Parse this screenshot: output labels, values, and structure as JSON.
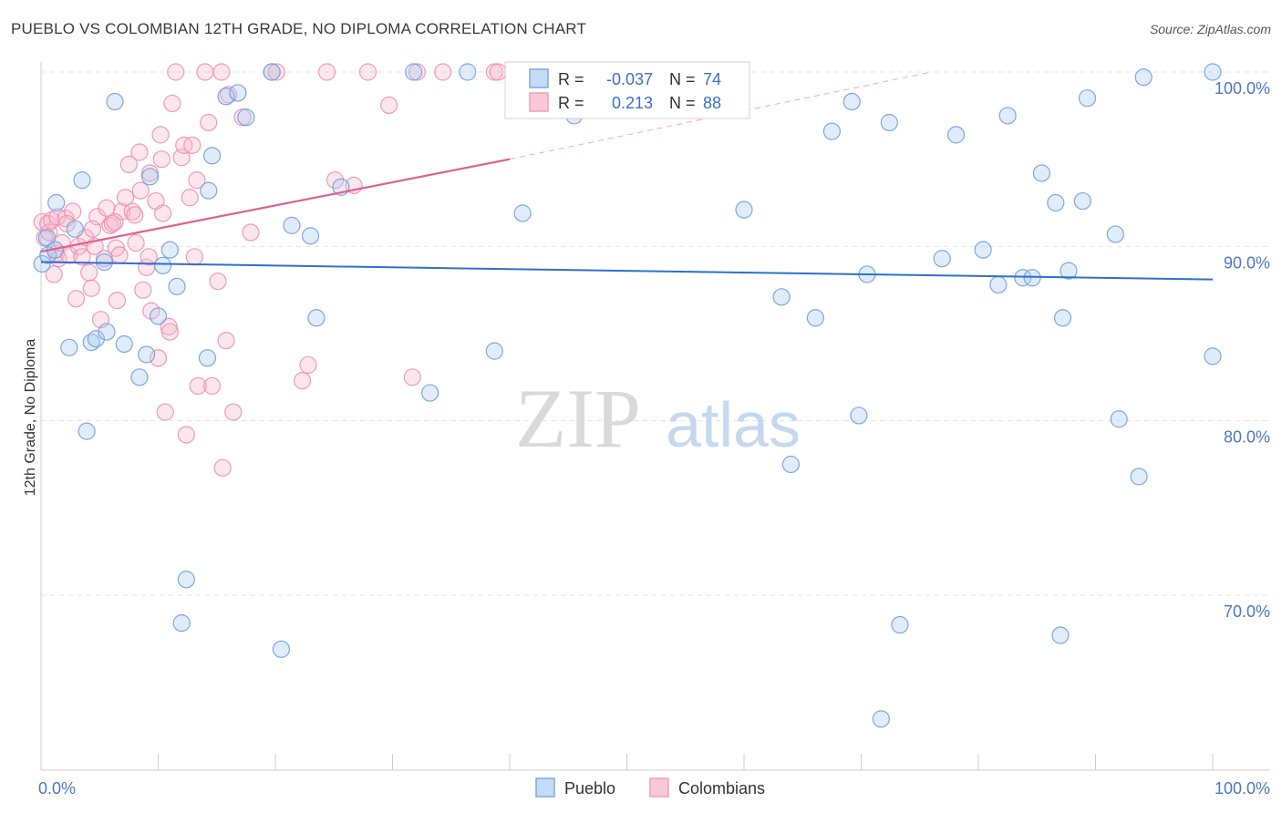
{
  "title": "PUEBLO VS COLOMBIAN 12TH GRADE, NO DIPLOMA CORRELATION CHART",
  "source": "Source: ZipAtlas.com",
  "watermark": {
    "zip": "ZIP",
    "atlas": "atlas"
  },
  "chart_data": {
    "type": "scatter",
    "ylabel": "12th Grade, No Diploma",
    "xlim": [
      0,
      100
    ],
    "ylim": [
      60,
      101.5
    ],
    "x_tick_labels": [
      {
        "value": 0,
        "label": "0.0%"
      },
      {
        "value": 100,
        "label": "100.0%"
      }
    ],
    "y_tick_labels": [
      {
        "value": 70,
        "label": "70.0%"
      },
      {
        "value": 80,
        "label": "80.0%"
      },
      {
        "value": 90,
        "label": "90.0%"
      },
      {
        "value": 100,
        "label": "100.0%"
      }
    ],
    "y_grid": [
      70,
      80,
      90,
      100
    ],
    "x_minor_ticks": [
      10,
      20,
      30,
      40,
      50,
      60,
      70,
      80,
      90,
      100
    ],
    "legend": {
      "position": "bottom-center",
      "entries": [
        "Pueblo",
        "Colombians"
      ]
    },
    "stats": [
      {
        "series": "Pueblo",
        "r_label": "R =",
        "r": "-0.037",
        "n_label": "N =",
        "n": "74"
      },
      {
        "series": "Colombians",
        "r_label": "R =",
        "r": "0.213",
        "n_label": "N =",
        "n": "88"
      }
    ],
    "series": [
      {
        "name": "Pueblo",
        "color": "#7aaae6",
        "line_color": "#2e6fd0",
        "trend": {
          "x0": 0,
          "y0": 89.1,
          "x1": 100,
          "y1": 88.1,
          "dashed_to": null
        },
        "points": [
          [
            0.1,
            89.0
          ],
          [
            0.5,
            90.5
          ],
          [
            0.6,
            89.5
          ],
          [
            1.2,
            89.8
          ],
          [
            1.3,
            92.5
          ],
          [
            2.4,
            84.2
          ],
          [
            2.9,
            91.0
          ],
          [
            3.5,
            93.8
          ],
          [
            3.9,
            79.4
          ],
          [
            4.3,
            84.5
          ],
          [
            4.7,
            84.7
          ],
          [
            5.4,
            89.1
          ],
          [
            5.6,
            85.1
          ],
          [
            6.3,
            98.3
          ],
          [
            7.1,
            84.4
          ],
          [
            8.4,
            82.5
          ],
          [
            9.0,
            83.8
          ],
          [
            9.3,
            94.0
          ],
          [
            10.0,
            86.0
          ],
          [
            10.4,
            88.9
          ],
          [
            11.0,
            89.8
          ],
          [
            11.6,
            87.7
          ],
          [
            12.4,
            70.9
          ],
          [
            12.0,
            68.4
          ],
          [
            14.2,
            83.6
          ],
          [
            14.3,
            93.2
          ],
          [
            14.6,
            95.2
          ],
          [
            15.8,
            98.6
          ],
          [
            16.8,
            98.8
          ],
          [
            17.5,
            97.4
          ],
          [
            19.7,
            100.0
          ],
          [
            20.5,
            66.9
          ],
          [
            21.4,
            91.2
          ],
          [
            23.0,
            90.6
          ],
          [
            23.5,
            85.9
          ],
          [
            25.6,
            93.4
          ],
          [
            31.8,
            100.0
          ],
          [
            33.2,
            81.6
          ],
          [
            36.4,
            100.0
          ],
          [
            38.7,
            84.0
          ],
          [
            41.1,
            91.9
          ],
          [
            45.5,
            97.5
          ],
          [
            47.1,
            100.0
          ],
          [
            60.0,
            92.1
          ],
          [
            63.2,
            87.1
          ],
          [
            64.0,
            77.5
          ],
          [
            66.1,
            85.9
          ],
          [
            67.5,
            96.6
          ],
          [
            69.2,
            98.3
          ],
          [
            69.8,
            80.3
          ],
          [
            70.5,
            88.4
          ],
          [
            71.7,
            62.9
          ],
          [
            72.4,
            97.1
          ],
          [
            73.3,
            68.3
          ],
          [
            76.9,
            89.3
          ],
          [
            78.1,
            96.4
          ],
          [
            80.4,
            89.8
          ],
          [
            81.7,
            87.8
          ],
          [
            82.5,
            97.5
          ],
          [
            83.8,
            88.2
          ],
          [
            84.6,
            88.2
          ],
          [
            85.4,
            94.2
          ],
          [
            86.6,
            92.5
          ],
          [
            87.0,
            67.7
          ],
          [
            87.2,
            85.9
          ],
          [
            87.7,
            88.6
          ],
          [
            88.9,
            92.6
          ],
          [
            89.3,
            98.5
          ],
          [
            91.7,
            90.7
          ],
          [
            92.0,
            80.1
          ],
          [
            93.7,
            76.8
          ],
          [
            94.1,
            99.7
          ],
          [
            100.0,
            83.7
          ],
          [
            100.0,
            100.0
          ]
        ]
      },
      {
        "name": "Colombians",
        "color": "#f2a0bc",
        "line_color": "#e0608e",
        "trend": {
          "x0": 0,
          "y0": 89.7,
          "x1": 40,
          "y1": 95.0,
          "dashed_x1": 76.0,
          "dashed_y1": 100.0
        },
        "points": [
          [
            0.1,
            91.4
          ],
          [
            0.3,
            90.5
          ],
          [
            0.6,
            91.3
          ],
          [
            0.7,
            90.8
          ],
          [
            0.9,
            91.5
          ],
          [
            1.1,
            88.4
          ],
          [
            1.3,
            89.6
          ],
          [
            1.4,
            91.7
          ],
          [
            1.5,
            89.3
          ],
          [
            1.8,
            90.2
          ],
          [
            2.1,
            91.6
          ],
          [
            2.4,
            89.5
          ],
          [
            2.7,
            92.0
          ],
          [
            3.0,
            87.0
          ],
          [
            3.2,
            90.0
          ],
          [
            3.5,
            89.4
          ],
          [
            3.8,
            90.5
          ],
          [
            4.1,
            88.5
          ],
          [
            4.3,
            87.6
          ],
          [
            4.6,
            90.0
          ],
          [
            4.8,
            91.7
          ],
          [
            5.1,
            85.8
          ],
          [
            5.4,
            89.3
          ],
          [
            5.6,
            92.2
          ],
          [
            5.9,
            91.2
          ],
          [
            6.1,
            91.3
          ],
          [
            6.4,
            89.9
          ],
          [
            6.5,
            86.9
          ],
          [
            6.7,
            89.5
          ],
          [
            6.9,
            92.0
          ],
          [
            7.2,
            92.8
          ],
          [
            7.5,
            94.7
          ],
          [
            7.8,
            92.0
          ],
          [
            8.0,
            91.8
          ],
          [
            8.1,
            90.2
          ],
          [
            8.4,
            95.4
          ],
          [
            8.5,
            93.2
          ],
          [
            8.7,
            87.5
          ],
          [
            9.0,
            88.8
          ],
          [
            9.2,
            89.4
          ],
          [
            9.3,
            94.2
          ],
          [
            9.4,
            86.3
          ],
          [
            9.8,
            92.6
          ],
          [
            10.0,
            83.6
          ],
          [
            10.2,
            96.4
          ],
          [
            10.4,
            91.9
          ],
          [
            10.6,
            80.5
          ],
          [
            10.9,
            85.4
          ],
          [
            11.0,
            85.1
          ],
          [
            11.2,
            98.2
          ],
          [
            11.5,
            100.0
          ],
          [
            12.0,
            95.1
          ],
          [
            12.2,
            95.8
          ],
          [
            12.4,
            79.2
          ],
          [
            12.7,
            92.8
          ],
          [
            12.9,
            95.8
          ],
          [
            13.1,
            89.4
          ],
          [
            13.3,
            93.8
          ],
          [
            13.4,
            82.0
          ],
          [
            14.0,
            100.0
          ],
          [
            14.3,
            97.1
          ],
          [
            14.6,
            82.0
          ],
          [
            15.1,
            88.0
          ],
          [
            15.4,
            100.0
          ],
          [
            15.5,
            77.3
          ],
          [
            15.8,
            84.6
          ],
          [
            16.0,
            98.7
          ],
          [
            16.4,
            80.5
          ],
          [
            17.2,
            97.4
          ],
          [
            17.9,
            90.8
          ],
          [
            19.7,
            100.0
          ],
          [
            20.1,
            100.0
          ],
          [
            22.3,
            82.3
          ],
          [
            22.8,
            83.2
          ],
          [
            24.4,
            100.0
          ],
          [
            25.1,
            93.8
          ],
          [
            26.7,
            93.5
          ],
          [
            27.9,
            100.0
          ],
          [
            29.7,
            98.1
          ],
          [
            31.7,
            82.5
          ],
          [
            32.1,
            100.0
          ],
          [
            34.3,
            100.0
          ],
          [
            38.7,
            100.0
          ],
          [
            39.0,
            100.0
          ],
          [
            10.3,
            95.0
          ],
          [
            4.4,
            91.0
          ],
          [
            2.2,
            91.3
          ],
          [
            6.3,
            91.4
          ]
        ]
      }
    ]
  }
}
